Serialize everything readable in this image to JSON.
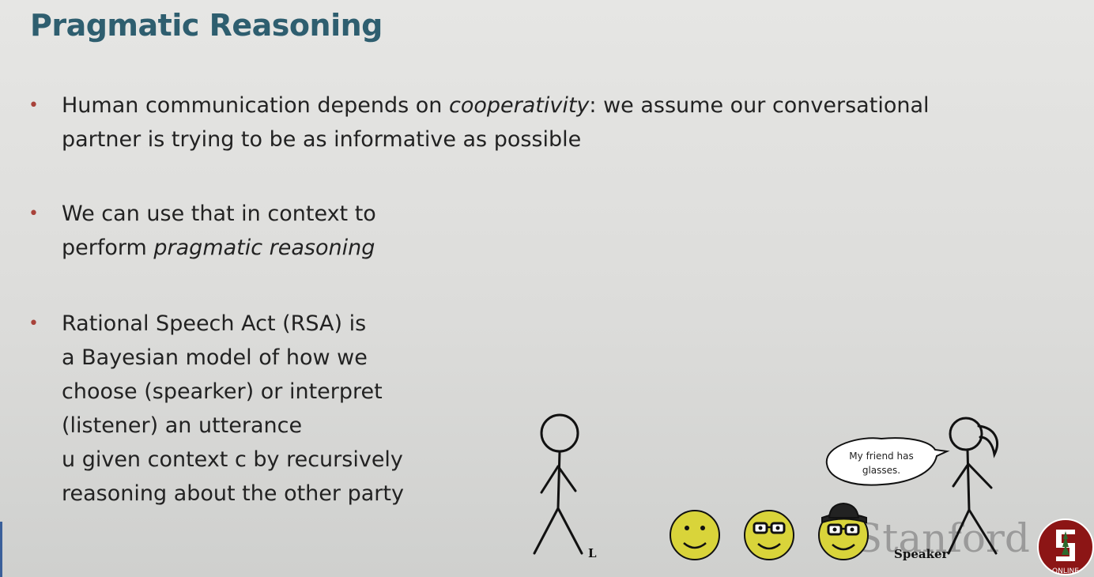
{
  "title": "Pragmatic Reasoning",
  "bullets": [
    {
      "l1_pre": "Human communication depends on ",
      "l1_em": "cooperativity",
      "l1_post": ": we assume our conversational",
      "l2": "partner is trying to be as informative as possible"
    },
    {
      "l1": "We can use that in context to",
      "l2_pre": "perform ",
      "l2_em": "pragmatic reasoning"
    },
    {
      "lines": [
        "Rational Speech Act (RSA) is",
        "a Bayesian model of how we",
        "choose (spearker) or interpret",
        "(listener) an utterance",
        "u given context c by recursively",
        "reasoning about the other party"
      ]
    }
  ],
  "illustration": {
    "listener_label": "L",
    "speaker_label": "Speaker",
    "speech_line1": "My friend has",
    "speech_line2": "glasses.",
    "watermark": "Stanford"
  },
  "logo": {
    "text": "ONLINE",
    "color": "#8c1515"
  },
  "colors": {
    "title": "#2e5e6f",
    "bullet": "#a8423a",
    "face": "#d9d43a"
  }
}
